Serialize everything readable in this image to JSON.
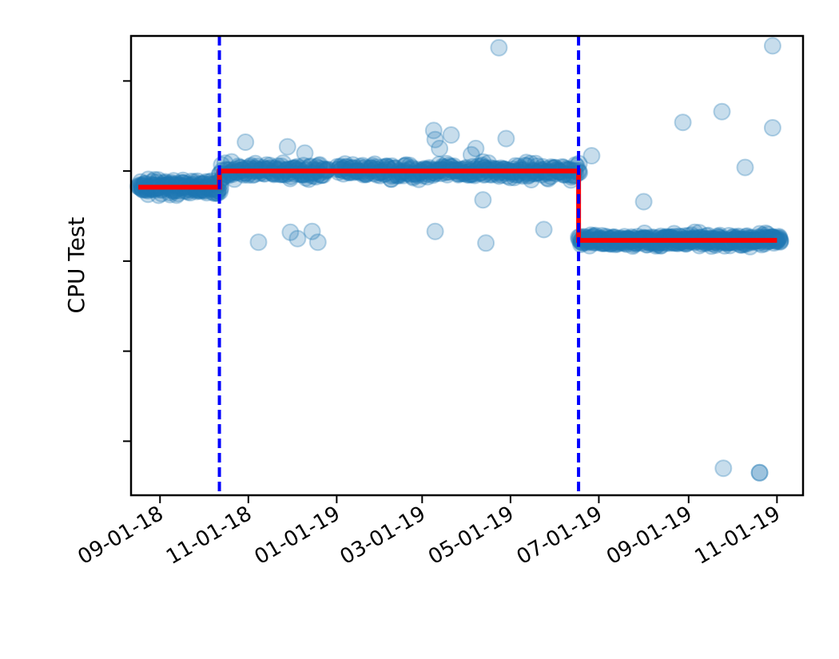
{
  "chart_data": {
    "type": "scatter",
    "title": "",
    "xlabel": "",
    "ylabel": "CPU Test",
    "grid": false,
    "legend": "none",
    "ylim": [
      -4.1,
      1.0
    ],
    "xlim": [
      "2018-08-12",
      "2019-11-19"
    ],
    "x_tick_labels": [
      "09-01-18",
      "11-01-18",
      "01-01-19",
      "03-01-19",
      "05-01-19",
      "07-01-19",
      "09-01-19",
      "11-01-19"
    ],
    "x_ticks": [
      "2018-09-01",
      "2018-11-01",
      "2019-01-01",
      "2019-03-01",
      "2019-05-01",
      "2019-07-01",
      "2019-09-01",
      "2019-11-01"
    ],
    "y_ticks": [
      0.5,
      -0.5,
      -1.5,
      -2.5,
      -3.5
    ],
    "y_tick_labels_shown": false,
    "colors": {
      "points": "#1f77b4",
      "step_line": "#ff0000",
      "change_lines": "#0000ff"
    },
    "change_points": [
      "2018-10-12",
      "2019-06-17"
    ],
    "step_line": [
      {
        "x": "2018-08-17",
        "y": -0.68
      },
      {
        "x": "2018-10-12",
        "y": -0.68
      },
      {
        "x": "2018-10-12",
        "y": -0.5
      },
      {
        "x": "2019-06-17",
        "y": -0.5
      },
      {
        "x": "2019-06-17",
        "y": -1.27
      },
      {
        "x": "2019-11-01",
        "y": -1.27
      }
    ],
    "series": [
      {
        "label_shown": false,
        "clusters": [
          {
            "start": "2018-08-17",
            "end": "2018-10-12",
            "y_center": -0.68,
            "spread": 0.08,
            "density": 1.0
          },
          {
            "start": "2018-10-12",
            "end": "2018-12-25",
            "y_center": -0.5,
            "spread": 0.09,
            "density": 0.8
          },
          {
            "start": "2019-01-01",
            "end": "2019-06-17",
            "y_center": -0.5,
            "spread": 0.09,
            "density": 0.8
          },
          {
            "start": "2019-06-17",
            "end": "2019-11-03",
            "y_center": -1.27,
            "spread": 0.07,
            "density": 1.0
          }
        ],
        "outliers": [
          {
            "x": "2018-10-30",
            "y": -0.18
          },
          {
            "x": "2018-11-28",
            "y": -0.23
          },
          {
            "x": "2018-12-10",
            "y": -0.3
          },
          {
            "x": "2018-11-30",
            "y": -1.18
          },
          {
            "x": "2018-11-08",
            "y": -1.29
          },
          {
            "x": "2018-12-05",
            "y": -1.25
          },
          {
            "x": "2018-12-15",
            "y": -1.17
          },
          {
            "x": "2018-12-19",
            "y": -1.29
          },
          {
            "x": "2019-03-09",
            "y": -0.05
          },
          {
            "x": "2019-03-10",
            "y": -0.15
          },
          {
            "x": "2019-03-13",
            "y": -0.25
          },
          {
            "x": "2019-03-21",
            "y": -0.1
          },
          {
            "x": "2019-04-04",
            "y": -0.32
          },
          {
            "x": "2019-04-12",
            "y": -0.4
          },
          {
            "x": "2019-03-10",
            "y": -1.17
          },
          {
            "x": "2019-04-14",
            "y": -1.3
          },
          {
            "x": "2019-04-12",
            "y": -0.82
          },
          {
            "x": "2019-04-23",
            "y": 0.87
          },
          {
            "x": "2019-04-28",
            "y": -0.14
          },
          {
            "x": "2019-04-07",
            "y": -0.25
          },
          {
            "x": "2019-05-24",
            "y": -1.15
          },
          {
            "x": "2019-06-26",
            "y": -0.33
          },
          {
            "x": "2019-08-01",
            "y": -0.84
          },
          {
            "x": "2019-08-28",
            "y": 0.04
          },
          {
            "x": "2019-09-24",
            "y": 0.16
          },
          {
            "x": "2019-10-10",
            "y": -0.46
          },
          {
            "x": "2019-10-29",
            "y": 0.89
          },
          {
            "x": "2019-10-29",
            "y": -0.02
          },
          {
            "x": "2019-09-25",
            "y": -3.8
          },
          {
            "x": "2019-10-20",
            "y": -3.85
          },
          {
            "x": "2019-10-20",
            "y": -3.85
          }
        ]
      }
    ]
  }
}
